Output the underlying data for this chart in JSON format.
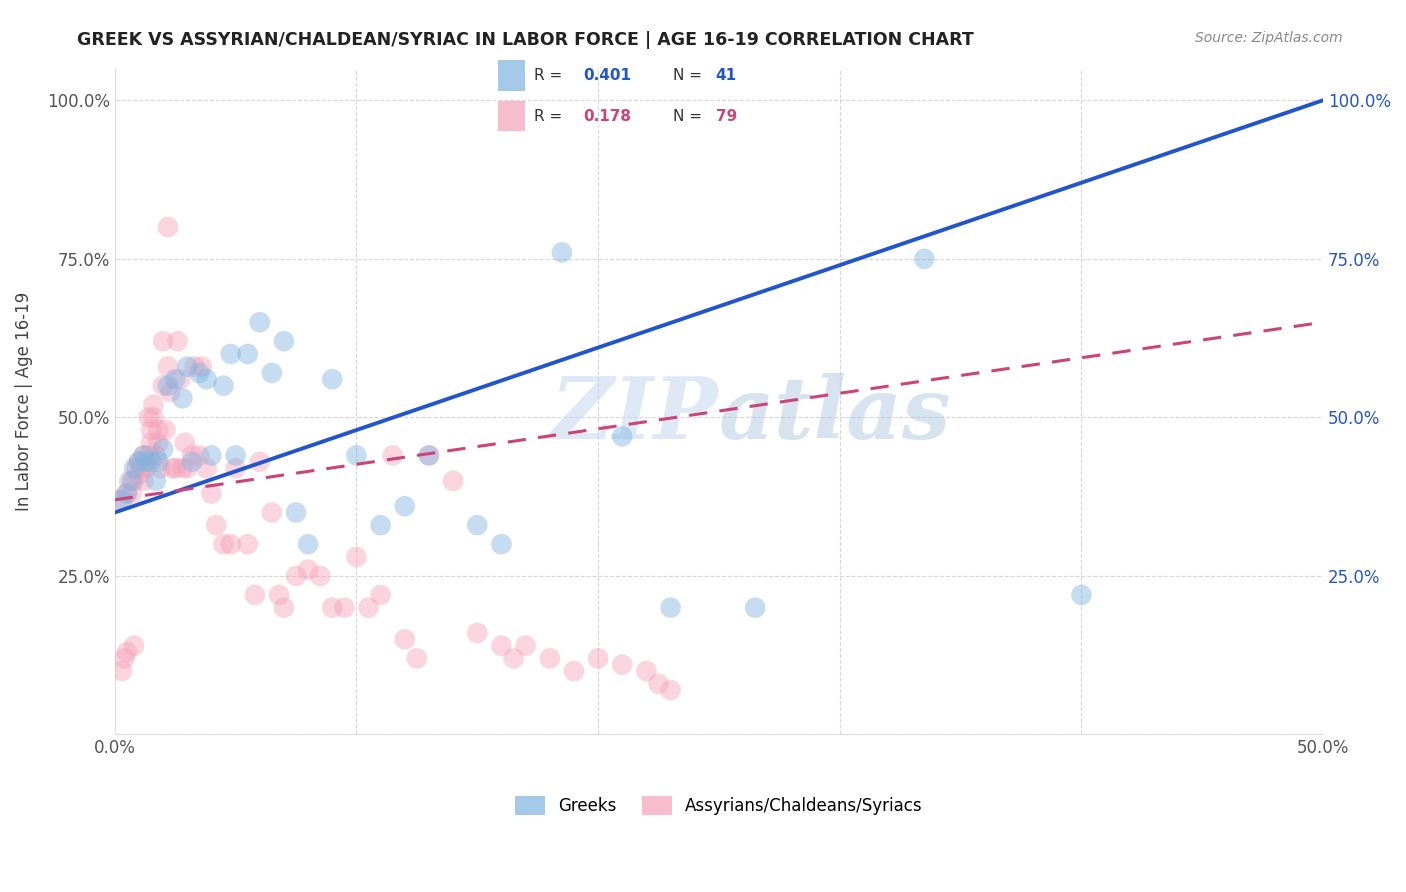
{
  "title": "GREEK VS ASSYRIAN/CHALDEAN/SYRIAC IN LABOR FORCE | AGE 16-19 CORRELATION CHART",
  "source": "Source: ZipAtlas.com",
  "ylabel_label": "In Labor Force | Age 16-19",
  "xlim": [
    0.0,
    0.5
  ],
  "ylim": [
    0.0,
    1.05
  ],
  "blue_color": "#7fb3e0",
  "pink_color": "#f4a0b8",
  "blue_line_color": "#2255cc",
  "pink_line_color": "#cc4477",
  "watermark_zip": "ZIP",
  "watermark_atlas": "atlas",
  "legend_blue_r": "0.401",
  "legend_blue_n": "41",
  "legend_pink_r": "0.178",
  "legend_pink_n": "79",
  "blue_scatter_x": [
    0.003,
    0.005,
    0.007,
    0.008,
    0.01,
    0.012,
    0.013,
    0.015,
    0.017,
    0.018,
    0.02,
    0.022,
    0.025,
    0.028,
    0.03,
    0.032,
    0.035,
    0.038,
    0.04,
    0.045,
    0.048,
    0.05,
    0.055,
    0.06,
    0.065,
    0.07,
    0.075,
    0.08,
    0.09,
    0.1,
    0.11,
    0.12,
    0.13,
    0.15,
    0.16,
    0.185,
    0.21,
    0.23,
    0.265,
    0.335,
    0.4
  ],
  "blue_scatter_y": [
    0.37,
    0.38,
    0.4,
    0.42,
    0.43,
    0.44,
    0.43,
    0.43,
    0.4,
    0.43,
    0.45,
    0.55,
    0.56,
    0.53,
    0.58,
    0.43,
    0.57,
    0.56,
    0.44,
    0.55,
    0.6,
    0.44,
    0.6,
    0.65,
    0.57,
    0.62,
    0.35,
    0.3,
    0.56,
    0.44,
    0.33,
    0.36,
    0.44,
    0.33,
    0.3,
    0.76,
    0.47,
    0.2,
    0.2,
    0.75,
    0.22
  ],
  "pink_scatter_x": [
    0.002,
    0.003,
    0.004,
    0.005,
    0.005,
    0.006,
    0.007,
    0.008,
    0.008,
    0.009,
    0.01,
    0.01,
    0.011,
    0.012,
    0.012,
    0.013,
    0.014,
    0.014,
    0.015,
    0.015,
    0.016,
    0.016,
    0.017,
    0.018,
    0.018,
    0.019,
    0.02,
    0.02,
    0.021,
    0.022,
    0.022,
    0.023,
    0.024,
    0.025,
    0.026,
    0.027,
    0.028,
    0.029,
    0.03,
    0.032,
    0.033,
    0.035,
    0.036,
    0.038,
    0.04,
    0.042,
    0.045,
    0.048,
    0.05,
    0.055,
    0.058,
    0.06,
    0.065,
    0.068,
    0.07,
    0.075,
    0.08,
    0.085,
    0.09,
    0.095,
    0.1,
    0.105,
    0.11,
    0.115,
    0.12,
    0.125,
    0.13,
    0.14,
    0.15,
    0.16,
    0.165,
    0.17,
    0.18,
    0.19,
    0.2,
    0.21,
    0.22,
    0.225,
    0.23
  ],
  "pink_scatter_y": [
    0.37,
    0.1,
    0.12,
    0.38,
    0.13,
    0.4,
    0.38,
    0.4,
    0.14,
    0.42,
    0.41,
    0.43,
    0.42,
    0.44,
    0.4,
    0.42,
    0.44,
    0.5,
    0.48,
    0.46,
    0.52,
    0.5,
    0.44,
    0.48,
    0.46,
    0.42,
    0.55,
    0.62,
    0.48,
    0.58,
    0.8,
    0.54,
    0.42,
    0.42,
    0.62,
    0.56,
    0.42,
    0.46,
    0.42,
    0.44,
    0.58,
    0.44,
    0.58,
    0.42,
    0.38,
    0.33,
    0.3,
    0.3,
    0.42,
    0.3,
    0.22,
    0.43,
    0.35,
    0.22,
    0.2,
    0.25,
    0.26,
    0.25,
    0.2,
    0.2,
    0.28,
    0.2,
    0.22,
    0.44,
    0.15,
    0.12,
    0.44,
    0.4,
    0.16,
    0.14,
    0.12,
    0.14,
    0.12,
    0.1,
    0.12,
    0.11,
    0.1,
    0.08,
    0.07
  ],
  "background_color": "#ffffff",
  "grid_color": "#cccccc",
  "marker_size": 220,
  "marker_alpha": 0.45
}
